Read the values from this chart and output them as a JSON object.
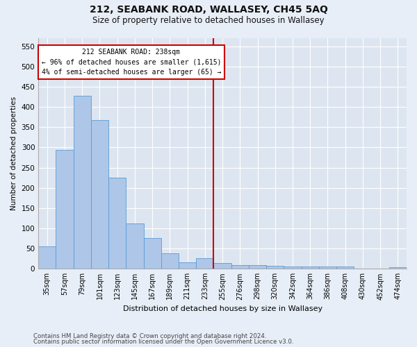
{
  "title": "212, SEABANK ROAD, WALLASEY, CH45 5AQ",
  "subtitle": "Size of property relative to detached houses in Wallasey",
  "xlabel": "Distribution of detached houses by size in Wallasey",
  "ylabel": "Number of detached properties",
  "bin_labels": [
    "35sqm",
    "57sqm",
    "79sqm",
    "101sqm",
    "123sqm",
    "145sqm",
    "167sqm",
    "189sqm",
    "211sqm",
    "233sqm",
    "255sqm",
    "276sqm",
    "298sqm",
    "320sqm",
    "342sqm",
    "364sqm",
    "386sqm",
    "408sqm",
    "430sqm",
    "452sqm",
    "474sqm"
  ],
  "bar_values": [
    55,
    293,
    428,
    367,
    225,
    112,
    76,
    39,
    16,
    27,
    14,
    9,
    9,
    8,
    6,
    5,
    5,
    5,
    0,
    0,
    4
  ],
  "bar_color": "#aec6e8",
  "bar_edge_color": "#5b9bd5",
  "annotation_line0": "212 SEABANK ROAD: 238sqm",
  "annotation_line1": "← 96% of detached houses are smaller (1,615)",
  "annotation_line2": "4% of semi-detached houses are larger (65) →",
  "annotation_box_color": "#ffffff",
  "annotation_box_edge_color": "#cc0000",
  "line_color": "#cc0000",
  "prop_line_bin_index": 9.5,
  "ylim": [
    0,
    570
  ],
  "yticks": [
    0,
    50,
    100,
    150,
    200,
    250,
    300,
    350,
    400,
    450,
    500,
    550
  ],
  "background_color": "#dde6f0",
  "grid_color": "#ffffff",
  "fig_background": "#e8eef7",
  "footer1": "Contains HM Land Registry data © Crown copyright and database right 2024.",
  "footer2": "Contains public sector information licensed under the Open Government Licence v3.0."
}
